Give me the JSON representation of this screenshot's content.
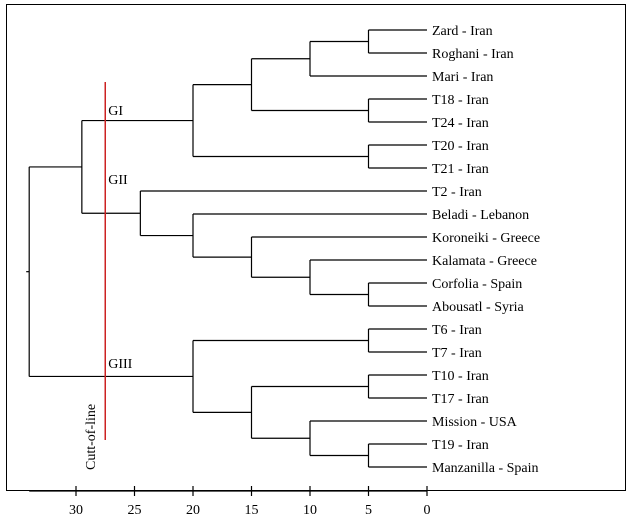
{
  "colors": {
    "line": "#000000",
    "cutoff": "#cc2222",
    "frame": "#000000"
  },
  "leaves": [
    "Zard - Iran",
    "Roghani - Iran",
    "Mari - Iran",
    "T18 - Iran",
    "T24 - Iran",
    "T20 - Iran",
    "T21 - Iran",
    "T2 - Iran",
    "Beladi - Lebanon",
    "Koroneiki - Greece",
    "Kalamata - Greece",
    "Corfolia - Spain",
    "Abousatl - Syria",
    "T6 - Iran",
    "T7 - Iran",
    "T10 - Iran",
    "T17 - Iran",
    "Mission - USA",
    "T19 - Iran",
    "Manzanilla - Spain"
  ],
  "merges": [
    {
      "id": "m1",
      "children": [
        "L0",
        "L1"
      ],
      "height": 5
    },
    {
      "id": "m2",
      "children": [
        "m1",
        "L2"
      ],
      "height": 10
    },
    {
      "id": "m3",
      "children": [
        "L3",
        "L4"
      ],
      "height": 5
    },
    {
      "id": "m4",
      "children": [
        "m2",
        "m3"
      ],
      "height": 15
    },
    {
      "id": "m5",
      "children": [
        "L5",
        "L6"
      ],
      "height": 5
    },
    {
      "id": "m6",
      "children": [
        "m4",
        "m5"
      ],
      "height": 20
    },
    {
      "id": "m7",
      "children": [
        "L11",
        "L12"
      ],
      "height": 5
    },
    {
      "id": "m8",
      "children": [
        "L10",
        "m7"
      ],
      "height": 10
    },
    {
      "id": "m9",
      "children": [
        "L9",
        "m8"
      ],
      "height": 15
    },
    {
      "id": "m10",
      "children": [
        "L8",
        "m9"
      ],
      "height": 20
    },
    {
      "id": "m11",
      "children": [
        "L7",
        "m10"
      ],
      "height": 24.5
    },
    {
      "id": "m12",
      "children": [
        "m6",
        "m11"
      ],
      "height": 29.5
    },
    {
      "id": "m13",
      "children": [
        "L13",
        "L14"
      ],
      "height": 5
    },
    {
      "id": "m14",
      "children": [
        "L15",
        "L16"
      ],
      "height": 5
    },
    {
      "id": "m15",
      "children": [
        "L18",
        "L19"
      ],
      "height": 5
    },
    {
      "id": "m16",
      "children": [
        "L17",
        "m15"
      ],
      "height": 10
    },
    {
      "id": "m17",
      "children": [
        "m14",
        "m16"
      ],
      "height": 15
    },
    {
      "id": "m18",
      "children": [
        "m13",
        "m17"
      ],
      "height": 20
    },
    {
      "id": "m19",
      "children": [
        "m12",
        "m18"
      ],
      "height": 34
    }
  ],
  "groups": [
    {
      "label": "GI",
      "leaf_index": 4
    },
    {
      "label": "GII",
      "leaf_index": 7
    },
    {
      "label": "GIII",
      "leaf_index": 15
    }
  ],
  "axis": {
    "ticks": [
      30,
      25,
      20,
      15,
      10,
      5,
      0
    ],
    "min": 0,
    "max": 34,
    "reversed": true
  },
  "cutoff": {
    "value": 27.5,
    "label": "Cutt-of-line"
  }
}
